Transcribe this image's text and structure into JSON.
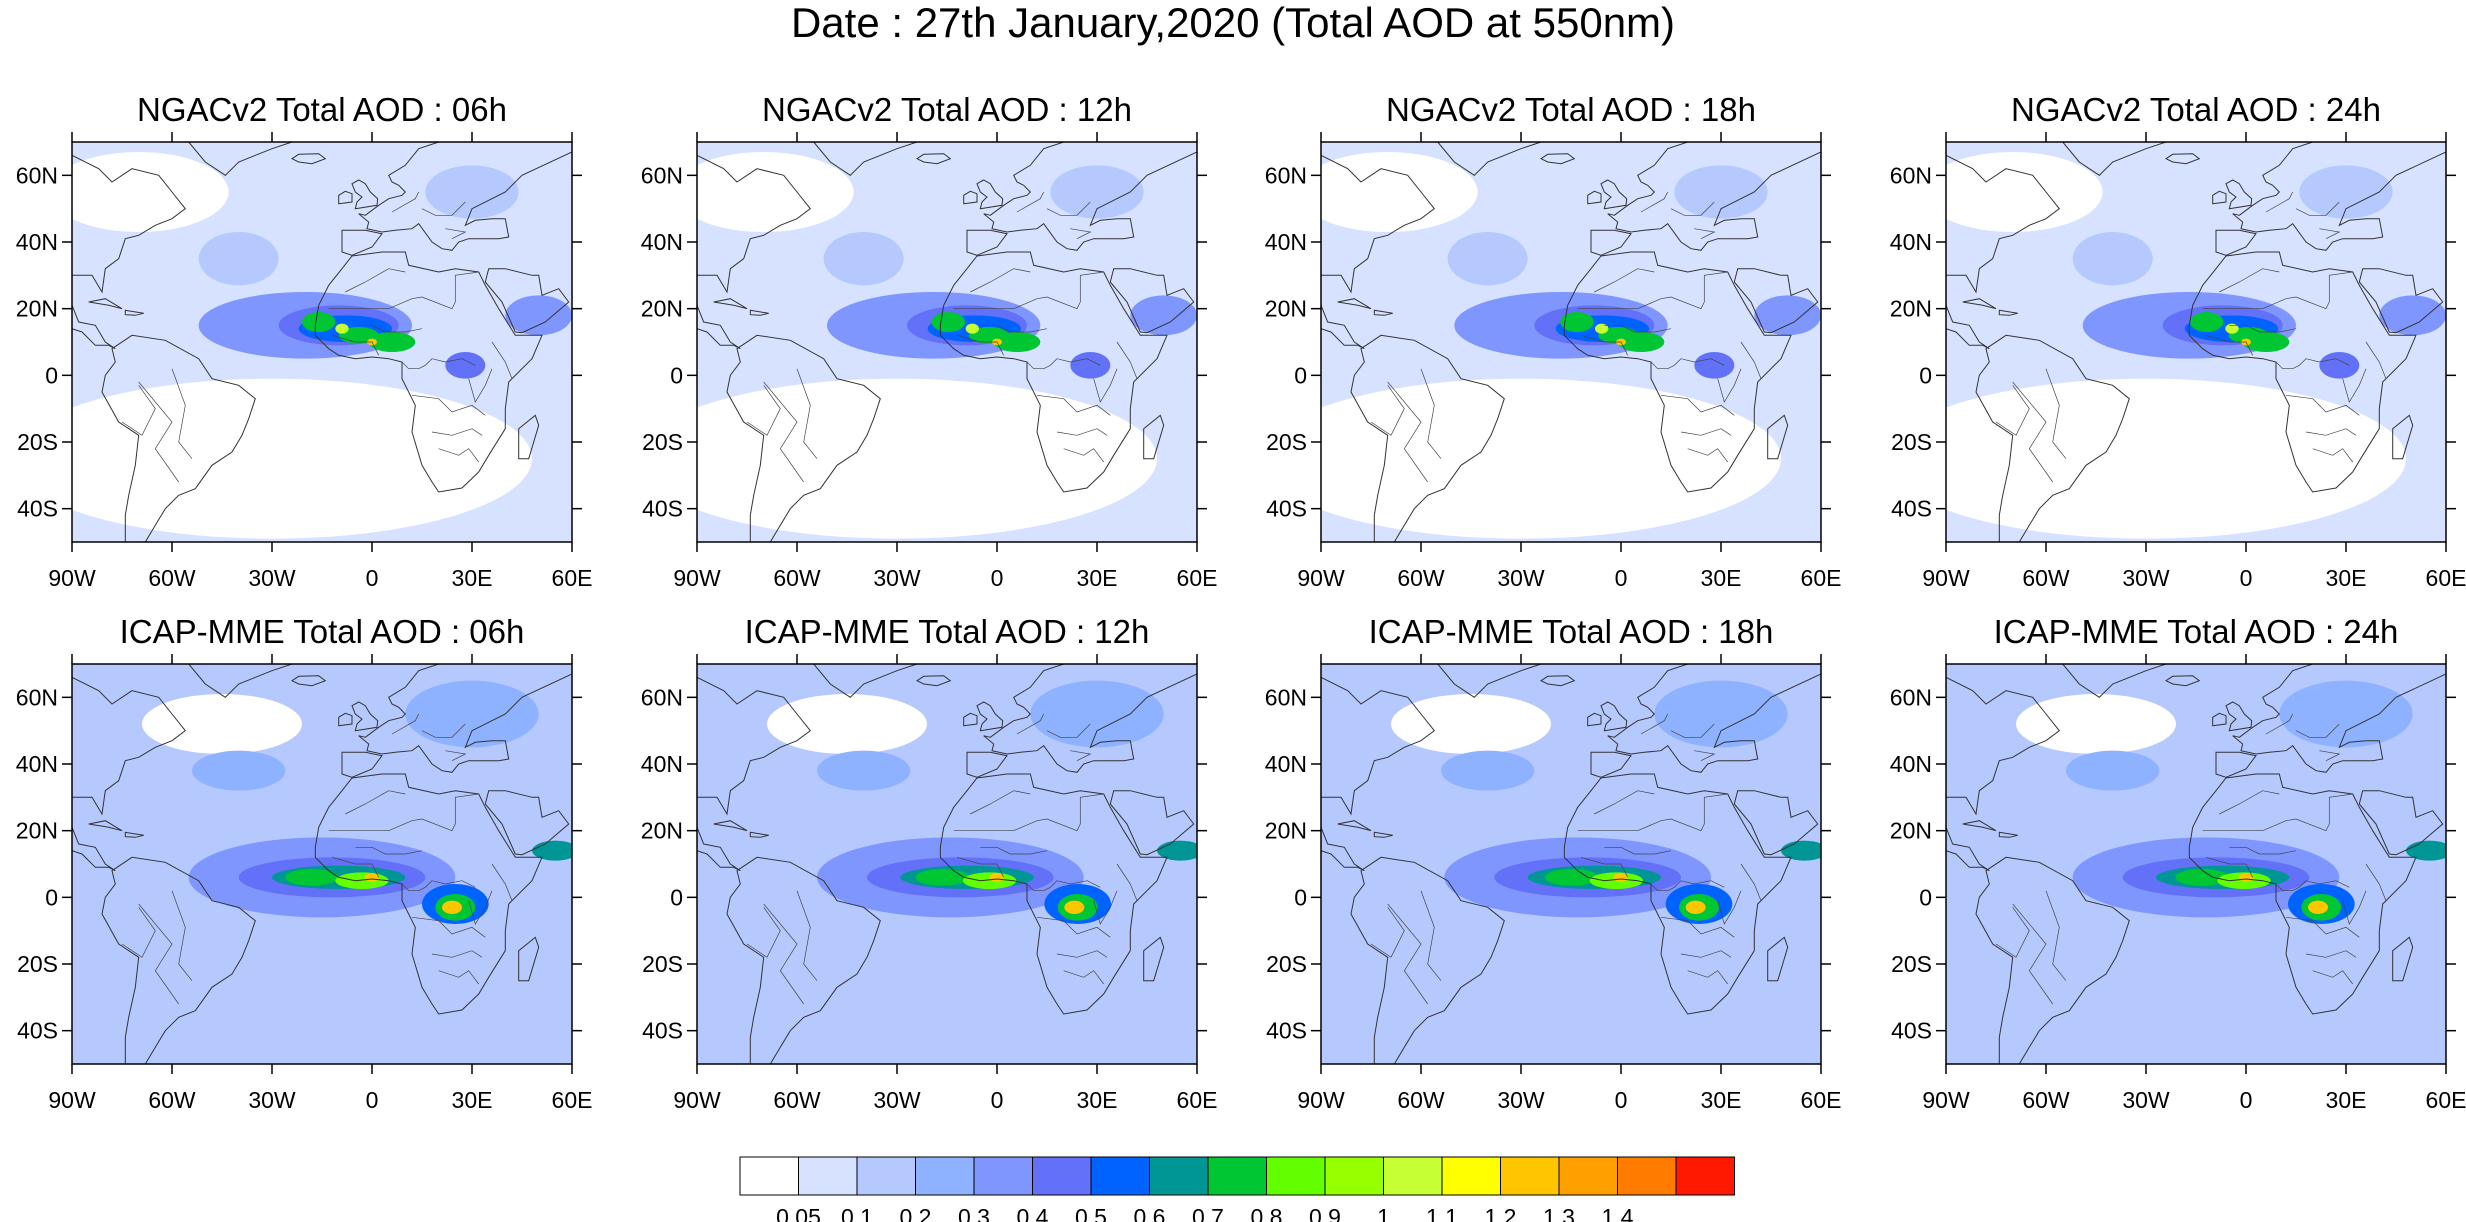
{
  "title": "Date : 27th January,2020 (Total AOD at 550nm)",
  "panels": [
    {
      "title": "NGACv2 Total AOD : 06h",
      "model": "NGACv2",
      "hour": "06h"
    },
    {
      "title": "NGACv2 Total AOD : 12h",
      "model": "NGACv2",
      "hour": "12h"
    },
    {
      "title": "NGACv2 Total AOD : 18h",
      "model": "NGACv2",
      "hour": "18h"
    },
    {
      "title": "NGACv2 Total AOD : 24h",
      "model": "NGACv2",
      "hour": "24h"
    },
    {
      "title": "ICAP-MME Total AOD : 06h",
      "model": "ICAP-MME",
      "hour": "06h"
    },
    {
      "title": "ICAP-MME Total AOD : 12h",
      "model": "ICAP-MME",
      "hour": "12h"
    },
    {
      "title": "ICAP-MME Total AOD : 18h",
      "model": "ICAP-MME",
      "hour": "18h"
    },
    {
      "title": "ICAP-MME Total AOD : 24h",
      "model": "ICAP-MME",
      "hour": "24h"
    }
  ],
  "map": {
    "lon_range": [
      -90,
      60
    ],
    "lat_range": [
      -50,
      70
    ],
    "lon_ticks": [
      {
        "value": -90,
        "label": "90W"
      },
      {
        "value": -60,
        "label": "60W"
      },
      {
        "value": -30,
        "label": "30W"
      },
      {
        "value": 0,
        "label": "0"
      },
      {
        "value": 30,
        "label": "30E"
      },
      {
        "value": 60,
        "label": "60E"
      }
    ],
    "lat_ticks": [
      {
        "value": 60,
        "label": "60N"
      },
      {
        "value": 40,
        "label": "40N"
      },
      {
        "value": 20,
        "label": "20N"
      },
      {
        "value": 0,
        "label": "0"
      },
      {
        "value": -20,
        "label": "20S"
      },
      {
        "value": -40,
        "label": "40S"
      }
    ]
  },
  "colorbar": {
    "colors": [
      "#ffffff",
      "#d6e2ff",
      "#b5c9ff",
      "#8eb2ff",
      "#7f96ff",
      "#6370f8",
      "#0063ff",
      "#009696",
      "#00c633",
      "#63ff00",
      "#96ff00",
      "#c6ff33",
      "#ffff00",
      "#ffc600",
      "#ffa000",
      "#ff7c00",
      "#ff1900"
    ],
    "labels": [
      "0.05",
      "0.1",
      "0.2",
      "0.3",
      "0.4",
      "0.5",
      "0.6",
      "0.7",
      "0.8",
      "0.9",
      "1",
      "1.1",
      "1.2",
      "1.3",
      "1.4"
    ]
  }
}
